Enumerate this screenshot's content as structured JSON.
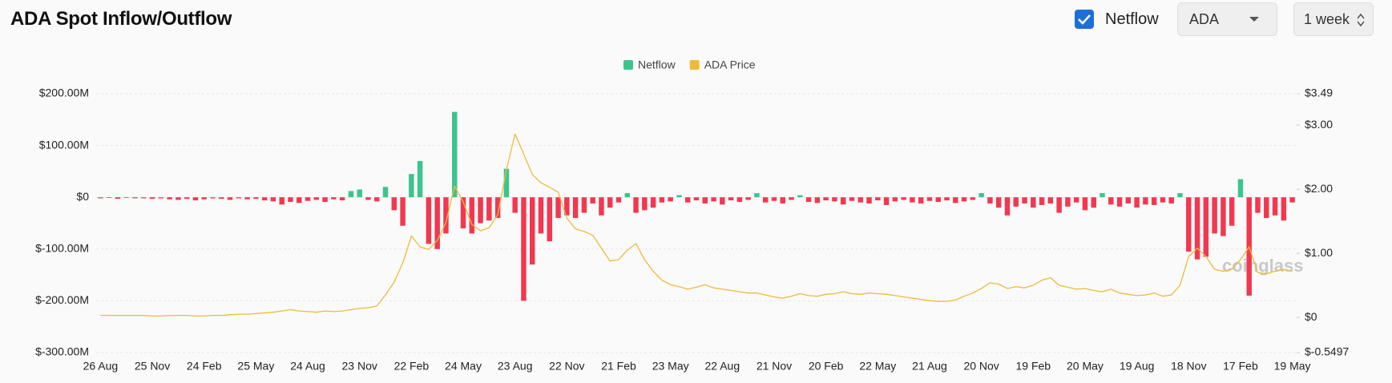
{
  "controls": {
    "checkbox_label": "Netflow",
    "asset": "ADA",
    "interval": "1 week"
  },
  "chart_data": {
    "type": "bar",
    "title": "ADA Spot Inflow/Outflow",
    "watermark": "coinglass",
    "grid": true,
    "legend": "top",
    "categories": [
      "26 Aug",
      null,
      null,
      null,
      null,
      null,
      "25 Nov",
      null,
      null,
      null,
      null,
      null,
      "24 Feb",
      null,
      null,
      null,
      null,
      null,
      "25 May",
      null,
      null,
      null,
      null,
      null,
      "24 Aug",
      null,
      null,
      null,
      null,
      null,
      "23 Nov",
      null,
      null,
      null,
      null,
      null,
      "22 Feb",
      null,
      null,
      null,
      null,
      null,
      "24 May",
      null,
      null,
      null,
      null,
      null,
      "23 Aug",
      null,
      null,
      null,
      null,
      null,
      "22 Nov",
      null,
      null,
      null,
      null,
      null,
      "21 Feb",
      null,
      null,
      null,
      null,
      null,
      "23 May",
      null,
      null,
      null,
      null,
      null,
      "22 Aug",
      null,
      null,
      null,
      null,
      null,
      "21 Nov",
      null,
      null,
      null,
      null,
      null,
      "20 Feb",
      null,
      null,
      null,
      null,
      null,
      "22 May",
      null,
      null,
      null,
      null,
      null,
      "21 Aug",
      null,
      null,
      null,
      null,
      null,
      "20 Nov",
      null,
      null,
      null,
      null,
      null,
      "19 Feb",
      null,
      null,
      null,
      null,
      null,
      "20 May",
      null,
      null,
      null,
      null,
      null,
      "19 Aug",
      null,
      null,
      null,
      null,
      null,
      "18 Nov",
      null,
      null,
      null,
      null,
      null,
      "17 Feb",
      null,
      null,
      null,
      null,
      null,
      "19 May"
    ],
    "series": [
      {
        "name": "Netflow",
        "type": "bar",
        "color": "#3cc48c",
        "negative_color": "#f2384f",
        "values": [
          -2,
          -1,
          -3,
          -1,
          -2,
          -2,
          -3,
          -2,
          -4,
          -5,
          -3,
          -6,
          -4,
          -2,
          -3,
          -5,
          -2,
          -4,
          -3,
          -6,
          -8,
          -14,
          -9,
          -11,
          -7,
          -5,
          -9,
          -4,
          -6,
          12,
          15,
          -5,
          -8,
          20,
          -25,
          -55,
          45,
          70,
          -90,
          -100,
          -70,
          165,
          -60,
          -70,
          -50,
          -45,
          -40,
          55,
          -30,
          -200,
          -130,
          -70,
          -85,
          -40,
          -35,
          -40,
          -30,
          -12,
          -35,
          -20,
          -10,
          8,
          -30,
          -25,
          -20,
          -10,
          -8,
          4,
          -10,
          -6,
          -12,
          -8,
          -14,
          -6,
          -9,
          -5,
          8,
          -10,
          -7,
          -12,
          -5,
          4,
          -9,
          -11,
          -6,
          -8,
          -14,
          -7,
          -10,
          -12,
          -6,
          -15,
          -8,
          -5,
          -10,
          -12,
          -7,
          -9,
          -6,
          -11,
          -8,
          -5,
          8,
          -12,
          -20,
          -35,
          -18,
          -12,
          -20,
          -15,
          -12,
          -30,
          -18,
          -10,
          -25,
          -20,
          8,
          -14,
          -18,
          -12,
          -20,
          -14,
          -15,
          -10,
          -12,
          8,
          -105,
          -120,
          -115,
          -70,
          -75,
          -55,
          35,
          -190,
          -30,
          -40,
          -35,
          -45,
          -10
        ]
      },
      {
        "name": "ADA Price",
        "type": "line",
        "axis": "y2",
        "color": "#f0b93a",
        "values": [
          0.03,
          0.03,
          0.03,
          0.03,
          0.03,
          0.03,
          0.02,
          0.02,
          0.03,
          0.03,
          0.03,
          0.02,
          0.02,
          0.03,
          0.03,
          0.04,
          0.05,
          0.05,
          0.06,
          0.07,
          0.08,
          0.1,
          0.12,
          0.1,
          0.09,
          0.08,
          0.1,
          0.09,
          0.1,
          0.12,
          0.14,
          0.15,
          0.18,
          0.35,
          0.55,
          0.85,
          1.27,
          1.1,
          1.06,
          1.2,
          1.48,
          2.05,
          1.8,
          1.45,
          1.35,
          1.4,
          1.6,
          2.3,
          2.86,
          2.55,
          2.23,
          2.1,
          2.03,
          1.95,
          1.55,
          1.38,
          1.34,
          1.28,
          1.08,
          0.88,
          0.9,
          1.05,
          1.15,
          0.9,
          0.72,
          0.58,
          0.51,
          0.48,
          0.44,
          0.47,
          0.51,
          0.46,
          0.44,
          0.42,
          0.4,
          0.38,
          0.38,
          0.35,
          0.32,
          0.3,
          0.33,
          0.37,
          0.34,
          0.33,
          0.36,
          0.37,
          0.4,
          0.37,
          0.36,
          0.38,
          0.37,
          0.36,
          0.34,
          0.32,
          0.3,
          0.28,
          0.26,
          0.25,
          0.25,
          0.27,
          0.33,
          0.38,
          0.45,
          0.54,
          0.52,
          0.45,
          0.48,
          0.46,
          0.5,
          0.58,
          0.62,
          0.5,
          0.47,
          0.44,
          0.45,
          0.42,
          0.4,
          0.44,
          0.38,
          0.36,
          0.34,
          0.35,
          0.38,
          0.33,
          0.35,
          0.5,
          0.95,
          1.08,
          0.95,
          0.75,
          0.72,
          0.75,
          0.9,
          1.1,
          0.7,
          0.68,
          0.72,
          0.75,
          0.72
        ]
      }
    ],
    "ylim": [
      -300,
      200
    ],
    "yticks": [
      {
        "value": 200,
        "label": "$200.00M"
      },
      {
        "value": 100,
        "label": "$100.00M"
      },
      {
        "value": 0,
        "label": "$0"
      },
      {
        "value": -100,
        "label": "$-100.00M"
      },
      {
        "value": -200,
        "label": "$-200.00M"
      },
      {
        "value": -300,
        "label": "$-300.00M"
      }
    ],
    "y2lim": [
      -0.5497,
      3.49
    ],
    "y2ticks": [
      {
        "value": 3.49,
        "label": "$3.49"
      },
      {
        "value": 3,
        "label": "$3.00"
      },
      {
        "value": 2,
        "label": "$2.00"
      },
      {
        "value": 1,
        "label": "$1.00"
      },
      {
        "value": 0,
        "label": "$0"
      },
      {
        "value": -0.5497,
        "label": "$-0.5497"
      }
    ]
  }
}
